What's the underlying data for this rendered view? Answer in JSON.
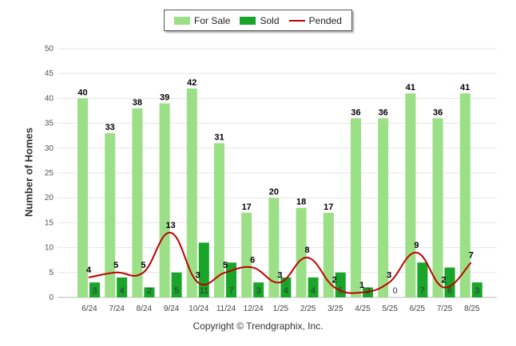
{
  "legend": {
    "for_sale": "For Sale",
    "sold": "Sold",
    "pended": "Pended"
  },
  "colors": {
    "for_sale": "#9bdf86",
    "sold": "#19a52a",
    "pended": "#c00000",
    "grid": "#e6e6e6"
  },
  "copyright": "Copyright © Trendgraphix, Inc.",
  "chart_data": {
    "type": "bar",
    "ylabel": "Number of Homes",
    "ylim": [
      0,
      50
    ],
    "yticks": [
      0,
      5,
      10,
      15,
      20,
      25,
      30,
      35,
      40,
      45,
      50
    ],
    "grid": true,
    "legend_position": "top",
    "categories": [
      "6/24",
      "7/24",
      "8/24",
      "9/24",
      "10/24",
      "11/24",
      "12/24",
      "1/25",
      "2/25",
      "3/25",
      "4/25",
      "5/25",
      "6/25",
      "7/25",
      "8/25"
    ],
    "series": [
      {
        "name": "For Sale",
        "kind": "bar",
        "values": [
          40,
          33,
          38,
          39,
          42,
          31,
          17,
          20,
          18,
          17,
          36,
          36,
          41,
          36,
          41
        ]
      },
      {
        "name": "Sold",
        "kind": "bar",
        "values": [
          3,
          4,
          2,
          5,
          11,
          7,
          3,
          4,
          4,
          5,
          2,
          0,
          7,
          6,
          3
        ]
      },
      {
        "name": "Pended",
        "kind": "line",
        "values": [
          4,
          5,
          5,
          13,
          3,
          5,
          6,
          3,
          8,
          2,
          1,
          3,
          9,
          2,
          7
        ]
      }
    ]
  }
}
